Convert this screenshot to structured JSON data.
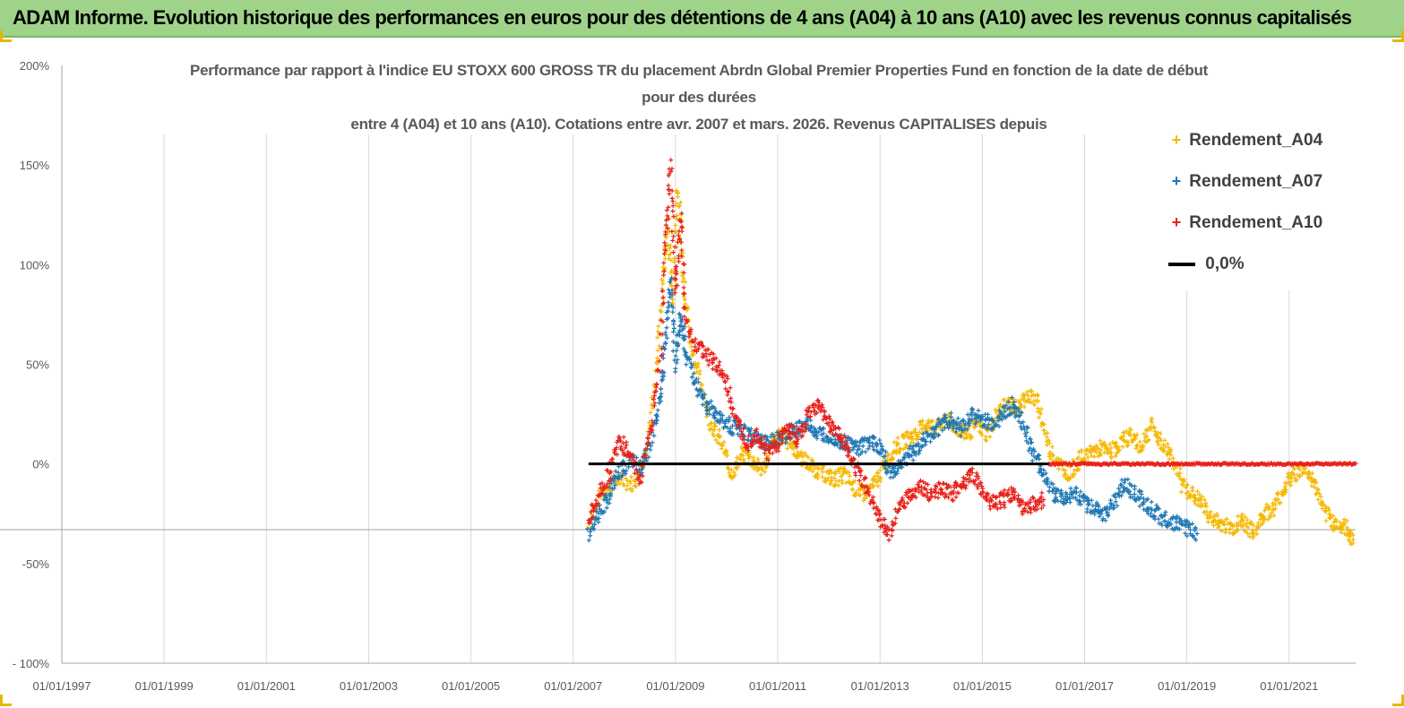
{
  "banner": {
    "title": "ADAM Informe. Evolution historique des performances en euros pour des détentions de 4 ans (A04) à 10 ans (A10) avec les revenus connus capitalisés"
  },
  "chart_data": {
    "type": "scatter",
    "title_lines": [
      "Performance par rapport à l'indice EU STOXX 600 GROSS TR  du placement Abrdn Global Premier Properties Fund en fonction de la date de début",
      "pour des durées",
      "entre 4 (A04) et 10 ans (A10). Cotations entre avr. 2007 et mars. 2026. Revenus CAPITALISES depuis"
    ],
    "xlabel": "",
    "ylabel": "",
    "x_range": [
      1997.0,
      2022.3
    ],
    "ylim": [
      -100,
      200
    ],
    "y_ticks": [
      -100,
      -50,
      0,
      50,
      100,
      150,
      200
    ],
    "y_tick_labels": [
      "- 100%",
      "-50%",
      "0%",
      "50%",
      "100%",
      "150%",
      "200%"
    ],
    "x_ticks": [
      1997,
      1999,
      2001,
      2003,
      2005,
      2007,
      2009,
      2011,
      2013,
      2015,
      2017,
      2019,
      2021
    ],
    "x_tick_labels": [
      "01/01/1997",
      "01/01/1999",
      "01/01/2001",
      "01/01/2003",
      "01/01/2005",
      "01/01/2007",
      "01/01/2009",
      "01/01/2011",
      "01/01/2013",
      "01/01/2015",
      "01/01/2017",
      "01/01/2019",
      "01/01/2021"
    ],
    "reference_line_y": -33,
    "series": [
      {
        "name": "Rendement_A04",
        "color": "#f5b800",
        "marker": "+",
        "points": [
          [
            2007.3,
            -30
          ],
          [
            2007.6,
            -12
          ],
          [
            2007.9,
            -8
          ],
          [
            2008.2,
            -10
          ],
          [
            2008.4,
            5
          ],
          [
            2008.6,
            40
          ],
          [
            2008.75,
            90
          ],
          [
            2008.85,
            120
          ],
          [
            2008.95,
            80
          ],
          [
            2009.05,
            140
          ],
          [
            2009.15,
            95
          ],
          [
            2009.3,
            60
          ],
          [
            2009.5,
            40
          ],
          [
            2009.7,
            20
          ],
          [
            2009.9,
            10
          ],
          [
            2010.1,
            -5
          ],
          [
            2010.3,
            5
          ],
          [
            2010.5,
            2
          ],
          [
            2010.7,
            -3
          ],
          [
            2010.9,
            10
          ],
          [
            2011.1,
            15
          ],
          [
            2011.3,
            8
          ],
          [
            2011.5,
            2
          ],
          [
            2011.7,
            -2
          ],
          [
            2011.9,
            -5
          ],
          [
            2012.1,
            -8
          ],
          [
            2012.3,
            -5
          ],
          [
            2012.5,
            -12
          ],
          [
            2012.7,
            -15
          ],
          [
            2012.9,
            -10
          ],
          [
            2013.1,
            0
          ],
          [
            2013.3,
            8
          ],
          [
            2013.5,
            12
          ],
          [
            2013.7,
            15
          ],
          [
            2013.9,
            20
          ],
          [
            2014.1,
            18
          ],
          [
            2014.3,
            22
          ],
          [
            2014.5,
            18
          ],
          [
            2014.7,
            15
          ],
          [
            2014.9,
            20
          ],
          [
            2015.1,
            15
          ],
          [
            2015.3,
            25
          ],
          [
            2015.5,
            30
          ],
          [
            2015.7,
            28
          ],
          [
            2015.9,
            35
          ],
          [
            2016.1,
            30
          ],
          [
            2016.3,
            8
          ],
          [
            2016.5,
            0
          ],
          [
            2016.7,
            -5
          ],
          [
            2016.9,
            2
          ],
          [
            2017.1,
            5
          ],
          [
            2017.3,
            8
          ],
          [
            2017.5,
            6
          ],
          [
            2017.7,
            10
          ],
          [
            2017.9,
            15
          ],
          [
            2018.1,
            8
          ],
          [
            2018.3,
            20
          ],
          [
            2018.5,
            10
          ],
          [
            2018.7,
            5
          ],
          [
            2018.9,
            -10
          ],
          [
            2019.1,
            -15
          ],
          [
            2019.3,
            -20
          ],
          [
            2019.5,
            -28
          ],
          [
            2019.7,
            -30
          ],
          [
            2019.9,
            -32
          ],
          [
            2020.1,
            -28
          ],
          [
            2020.3,
            -35
          ],
          [
            2020.5,
            -25
          ],
          [
            2020.7,
            -22
          ],
          [
            2020.9,
            -12
          ],
          [
            2021.1,
            -5
          ],
          [
            2021.3,
            -2
          ],
          [
            2021.5,
            -10
          ],
          [
            2021.7,
            -25
          ],
          [
            2021.9,
            -30
          ],
          [
            2022.1,
            -32
          ],
          [
            2022.25,
            -38
          ]
        ]
      },
      {
        "name": "Rendement_A07",
        "color": "#1f77b4",
        "marker": "+",
        "points": [
          [
            2007.3,
            -35
          ],
          [
            2007.5,
            -25
          ],
          [
            2007.7,
            -15
          ],
          [
            2007.9,
            -5
          ],
          [
            2008.1,
            2
          ],
          [
            2008.3,
            -2
          ],
          [
            2008.5,
            10
          ],
          [
            2008.7,
            30
          ],
          [
            2008.8,
            60
          ],
          [
            2008.9,
            95
          ],
          [
            2009.0,
            50
          ],
          [
            2009.1,
            75
          ],
          [
            2009.2,
            55
          ],
          [
            2009.4,
            40
          ],
          [
            2009.6,
            30
          ],
          [
            2009.8,
            25
          ],
          [
            2010.0,
            20
          ],
          [
            2010.2,
            18
          ],
          [
            2010.4,
            15
          ],
          [
            2010.6,
            12
          ],
          [
            2010.8,
            10
          ],
          [
            2011.0,
            12
          ],
          [
            2011.2,
            15
          ],
          [
            2011.4,
            18
          ],
          [
            2011.6,
            20
          ],
          [
            2011.8,
            15
          ],
          [
            2012.0,
            15
          ],
          [
            2012.2,
            12
          ],
          [
            2012.4,
            10
          ],
          [
            2012.6,
            8
          ],
          [
            2012.8,
            12
          ],
          [
            2013.0,
            8
          ],
          [
            2013.2,
            -5
          ],
          [
            2013.4,
            0
          ],
          [
            2013.6,
            5
          ],
          [
            2013.8,
            10
          ],
          [
            2014.0,
            15
          ],
          [
            2014.2,
            20
          ],
          [
            2014.4,
            22
          ],
          [
            2014.6,
            18
          ],
          [
            2014.8,
            25
          ],
          [
            2015.0,
            22
          ],
          [
            2015.2,
            20
          ],
          [
            2015.4,
            25
          ],
          [
            2015.6,
            30
          ],
          [
            2015.8,
            20
          ],
          [
            2016.0,
            5
          ],
          [
            2016.2,
            -5
          ],
          [
            2016.4,
            -15
          ],
          [
            2016.6,
            -18
          ],
          [
            2016.8,
            -15
          ],
          [
            2017.0,
            -20
          ],
          [
            2017.2,
            -22
          ],
          [
            2017.4,
            -25
          ],
          [
            2017.6,
            -18
          ],
          [
            2017.8,
            -10
          ],
          [
            2018.0,
            -15
          ],
          [
            2018.2,
            -20
          ],
          [
            2018.4,
            -25
          ],
          [
            2018.6,
            -28
          ],
          [
            2018.8,
            -30
          ],
          [
            2019.0,
            -32
          ],
          [
            2019.2,
            -35
          ]
        ]
      },
      {
        "name": "Rendement_A10",
        "color": "#e8201a",
        "marker": "+",
        "points": [
          [
            2007.3,
            -28
          ],
          [
            2007.5,
            -15
          ],
          [
            2007.7,
            -5
          ],
          [
            2007.9,
            12
          ],
          [
            2008.1,
            5
          ],
          [
            2008.3,
            -8
          ],
          [
            2008.5,
            15
          ],
          [
            2008.7,
            50
          ],
          [
            2008.8,
            110
          ],
          [
            2008.9,
            150
          ],
          [
            2009.0,
            85
          ],
          [
            2009.1,
            125
          ],
          [
            2009.2,
            70
          ],
          [
            2009.4,
            60
          ],
          [
            2009.6,
            55
          ],
          [
            2009.8,
            50
          ],
          [
            2010.0,
            40
          ],
          [
            2010.2,
            20
          ],
          [
            2010.4,
            10
          ],
          [
            2010.6,
            15
          ],
          [
            2010.8,
            5
          ],
          [
            2011.0,
            10
          ],
          [
            2011.2,
            18
          ],
          [
            2011.4,
            12
          ],
          [
            2011.6,
            25
          ],
          [
            2011.8,
            30
          ],
          [
            2012.0,
            20
          ],
          [
            2012.2,
            15
          ],
          [
            2012.4,
            5
          ],
          [
            2012.6,
            -5
          ],
          [
            2012.8,
            -15
          ],
          [
            2013.0,
            -28
          ],
          [
            2013.2,
            -35
          ],
          [
            2013.4,
            -20
          ],
          [
            2013.6,
            -15
          ],
          [
            2013.8,
            -12
          ],
          [
            2014.0,
            -15
          ],
          [
            2014.2,
            -12
          ],
          [
            2014.4,
            -15
          ],
          [
            2014.6,
            -10
          ],
          [
            2014.8,
            -5
          ],
          [
            2015.0,
            -15
          ],
          [
            2015.2,
            -20
          ],
          [
            2015.4,
            -18
          ],
          [
            2015.6,
            -15
          ],
          [
            2015.8,
            -22
          ],
          [
            2016.0,
            -20
          ],
          [
            2016.2,
            -18
          ]
        ]
      },
      {
        "name": "0,0%",
        "color": "#000000",
        "marker": "line",
        "points": [
          [
            2007.3,
            0
          ],
          [
            2016.3,
            0
          ]
        ]
      }
    ],
    "red_zero_band": [
      2016.3,
      2022.3
    ]
  }
}
